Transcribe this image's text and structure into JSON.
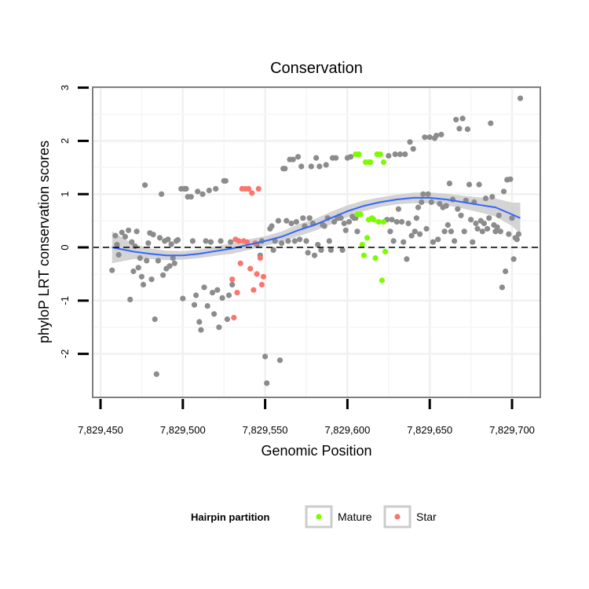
{
  "chart_data": {
    "type": "scatter",
    "title": "Conservation",
    "xlabel": "Genomic Position",
    "ylabel": "phyloP LRT conservation scores",
    "xlim": [
      7829443,
      7829707
    ],
    "ylim": [
      -2.8,
      3.0
    ],
    "x_ticks": [
      7829450,
      7829500,
      7829550,
      7829600,
      7829650,
      7829700
    ],
    "x_tick_labels": [
      "7,829,450",
      "7,829,500",
      "7,829,550",
      "7,829,600",
      "7,829,650",
      "7,829,700"
    ],
    "y_ticks": [
      -2,
      -1,
      0,
      1,
      2,
      3
    ],
    "y_tick_labels": [
      "-2",
      "-1",
      "0",
      "1",
      "2",
      "3"
    ],
    "grid": true,
    "reference_line": {
      "y": 0,
      "style": "dashed",
      "color": "#000000"
    },
    "legend": {
      "title": "Hairpin partition",
      "position": "bottom",
      "entries": [
        {
          "label": "Mature",
          "color": "#7CFC00"
        },
        {
          "label": "Star",
          "color": "#F8766D"
        }
      ]
    },
    "colors": {
      "other": "#8c8c8c",
      "Mature": "#7CFC00",
      "Star": "#F8766D",
      "smooth": "#3366FF",
      "ribbon": "#cccccc"
    },
    "series": [
      {
        "name": "Other",
        "color": "#8c8c8c",
        "points": [
          [
            7829457,
            -0.43
          ],
          [
            7829459,
            0.22
          ],
          [
            7829460,
            0.05
          ],
          [
            7829461,
            -0.14
          ],
          [
            7829463,
            0.28
          ],
          [
            7829465,
            0.2
          ],
          [
            7829467,
            0.32
          ],
          [
            7829468,
            -0.98
          ],
          [
            7829469,
            0.1
          ],
          [
            7829470,
            -0.45
          ],
          [
            7829471,
            0.02
          ],
          [
            7829472,
            0.3
          ],
          [
            7829473,
            -0.38
          ],
          [
            7829474,
            -0.2
          ],
          [
            7829475,
            -0.55
          ],
          [
            7829476,
            -0.7
          ],
          [
            7829477,
            1.17
          ],
          [
            7829478,
            -0.25
          ],
          [
            7829479,
            0.08
          ],
          [
            7829480,
            0.27
          ],
          [
            7829481,
            -0.6
          ],
          [
            7829482,
            0.24
          ],
          [
            7829483,
            -1.35
          ],
          [
            7829484,
            -2.38
          ],
          [
            7829485,
            -0.25
          ],
          [
            7829486,
            0.18
          ],
          [
            7829487,
            1.0
          ],
          [
            7829488,
            -0.52
          ],
          [
            7829489,
            0.12
          ],
          [
            7829490,
            -0.4
          ],
          [
            7829491,
            0.15
          ],
          [
            7829492,
            -0.35
          ],
          [
            7829493,
            0.06
          ],
          [
            7829494,
            -0.2
          ],
          [
            7829495,
            -0.3
          ],
          [
            7829496,
            0.12
          ],
          [
            7829497,
            0.14
          ],
          [
            7829499,
            1.1
          ],
          [
            7829500,
            -0.96
          ],
          [
            7829501,
            1.1
          ],
          [
            7829502,
            1.1
          ],
          [
            7829503,
            0.95
          ],
          [
            7829505,
            0.95
          ],
          [
            7829506,
            0.12
          ],
          [
            7829507,
            -1.08
          ],
          [
            7829508,
            -0.9
          ],
          [
            7829509,
            1.05
          ],
          [
            7829510,
            -1.4
          ],
          [
            7829511,
            -1.55
          ],
          [
            7829512,
            1.0
          ],
          [
            7829513,
            -0.75
          ],
          [
            7829514,
            0.12
          ],
          [
            7829515,
            -1.1
          ],
          [
            7829516,
            1.07
          ],
          [
            7829517,
            0.1
          ],
          [
            7829518,
            -0.85
          ],
          [
            7829519,
            -1.25
          ],
          [
            7829520,
            1.1
          ],
          [
            7829521,
            -0.8
          ],
          [
            7829522,
            -1.5
          ],
          [
            7829523,
            0.12
          ],
          [
            7829524,
            -0.95
          ],
          [
            7829525,
            1.25
          ],
          [
            7829526,
            1.25
          ],
          [
            7829527,
            -1.35
          ],
          [
            7829528,
            -0.9
          ],
          [
            7829529,
            0.1
          ],
          [
            7829530,
            -0.7
          ],
          [
            7829545,
            0.05
          ],
          [
            7829547,
            -0.15
          ],
          [
            7829548,
            0.12
          ],
          [
            7829550,
            -2.05
          ],
          [
            7829551,
            -2.55
          ],
          [
            7829553,
            0.35
          ],
          [
            7829554,
            0.4
          ],
          [
            7829555,
            -0.05
          ],
          [
            7829556,
            0.12
          ],
          [
            7829558,
            0.5
          ],
          [
            7829559,
            -2.12
          ],
          [
            7829560,
            0.08
          ],
          [
            7829561,
            1.48
          ],
          [
            7829562,
            1.48
          ],
          [
            7829563,
            0.5
          ],
          [
            7829564,
            0.12
          ],
          [
            7829565,
            1.65
          ],
          [
            7829566,
            0.45
          ],
          [
            7829567,
            1.65
          ],
          [
            7829568,
            0.12
          ],
          [
            7829569,
            0.48
          ],
          [
            7829570,
            1.7
          ],
          [
            7829571,
            0.15
          ],
          [
            7829572,
            1.52
          ],
          [
            7829573,
            0.55
          ],
          [
            7829574,
            0.4
          ],
          [
            7829575,
            0.12
          ],
          [
            7829576,
            -0.1
          ],
          [
            7829577,
            0.55
          ],
          [
            7829578,
            1.52
          ],
          [
            7829579,
            0.45
          ],
          [
            7829580,
            -0.15
          ],
          [
            7829581,
            1.68
          ],
          [
            7829582,
            0.05
          ],
          [
            7829583,
            1.52
          ],
          [
            7829584,
            -0.05
          ],
          [
            7829585,
            0.42
          ],
          [
            7829586,
            0.4
          ],
          [
            7829587,
            1.55
          ],
          [
            7829588,
            0.55
          ],
          [
            7829589,
            0.12
          ],
          [
            7829590,
            -0.05
          ],
          [
            7829591,
            1.68
          ],
          [
            7829592,
            0.48
          ],
          [
            7829593,
            1.68
          ],
          [
            7829594,
            0.55
          ],
          [
            7829595,
            0.58
          ],
          [
            7829596,
            0.55
          ],
          [
            7829597,
            -0.05
          ],
          [
            7829598,
            0.45
          ],
          [
            7829599,
            0.32
          ],
          [
            7829600,
            1.68
          ],
          [
            7829601,
            0.48
          ],
          [
            7829602,
            1.7
          ],
          [
            7829603,
            0.58
          ],
          [
            7829604,
            0.55
          ],
          [
            7829605,
            0.55
          ],
          [
            7829606,
            0.3
          ],
          [
            7829624,
            0.52
          ],
          [
            7829625,
            1.72
          ],
          [
            7829626,
            0.3
          ],
          [
            7829627,
            0.52
          ],
          [
            7829628,
            0.12
          ],
          [
            7829629,
            1.75
          ],
          [
            7829630,
            0.48
          ],
          [
            7829631,
            0.72
          ],
          [
            7829632,
            1.75
          ],
          [
            7829633,
            0.48
          ],
          [
            7829634,
            0.1
          ],
          [
            7829635,
            1.75
          ],
          [
            7829636,
            -0.22
          ],
          [
            7829637,
            0.45
          ],
          [
            7829638,
            1.98
          ],
          [
            7829639,
            0.22
          ],
          [
            7829640,
            1.85
          ],
          [
            7829641,
            0.3
          ],
          [
            7829642,
            0.55
          ],
          [
            7829643,
            0.75
          ],
          [
            7829644,
            0.25
          ],
          [
            7829645,
            0.85
          ],
          [
            7829646,
            1.0
          ],
          [
            7829647,
            2.07
          ],
          [
            7829648,
            0.35
          ],
          [
            7829649,
            1.0
          ],
          [
            7829650,
            2.07
          ],
          [
            7829651,
            0.85
          ],
          [
            7829652,
            0.1
          ],
          [
            7829653,
            2.05
          ],
          [
            7829654,
            2.1
          ],
          [
            7829655,
            0.15
          ],
          [
            7829656,
            0.82
          ],
          [
            7829657,
            2.12
          ],
          [
            7829658,
            0.75
          ],
          [
            7829659,
            0.3
          ],
          [
            7829660,
            0.78
          ],
          [
            7829661,
            0.42
          ],
          [
            7829662,
            1.2
          ],
          [
            7829663,
            0.3
          ],
          [
            7829664,
            0.9
          ],
          [
            7829665,
            0.12
          ],
          [
            7829666,
            2.4
          ],
          [
            7829667,
            0.72
          ],
          [
            7829668,
            2.23
          ],
          [
            7829669,
            0.6
          ],
          [
            7829670,
            2.42
          ],
          [
            7829671,
            0.3
          ],
          [
            7829672,
            0.88
          ],
          [
            7829673,
            2.22
          ],
          [
            7829674,
            1.18
          ],
          [
            7829675,
            0.52
          ],
          [
            7829676,
            0.1
          ],
          [
            7829677,
            0.85
          ],
          [
            7829678,
            0.45
          ],
          [
            7829679,
            0.35
          ],
          [
            7829680,
            1.18
          ],
          [
            7829681,
            0.5
          ],
          [
            7829682,
            0.3
          ],
          [
            7829683,
            0.45
          ],
          [
            7829684,
            0.92
          ],
          [
            7829685,
            0.35
          ],
          [
            7829686,
            0.55
          ],
          [
            7829687,
            2.33
          ],
          [
            7829688,
            0.95
          ],
          [
            7829689,
            0.42
          ],
          [
            7829690,
            0.3
          ],
          [
            7829691,
            0.38
          ],
          [
            7829692,
            0.6
          ],
          [
            7829693,
            0.3
          ],
          [
            7829694,
            -0.75
          ],
          [
            7829695,
            1.05
          ],
          [
            7829696,
            -0.45
          ],
          [
            7829697,
            1.27
          ],
          [
            7829698,
            0.25
          ],
          [
            7829699,
            1.28
          ],
          [
            7829700,
            0.55
          ],
          [
            7829701,
            -0.22
          ],
          [
            7829702,
            0.18
          ],
          [
            7829703,
            0.15
          ],
          [
            7829704,
            0.25
          ],
          [
            7829705,
            2.8
          ]
        ]
      },
      {
        "name": "Mature",
        "color": "#7CFC00",
        "points": [
          [
            7829605,
            1.75
          ],
          [
            7829607,
            1.75
          ],
          [
            7829606,
            0.62
          ],
          [
            7829608,
            0.62
          ],
          [
            7829609,
            0.05
          ],
          [
            7829610,
            -0.15
          ],
          [
            7829611,
            1.6
          ],
          [
            7829612,
            0.18
          ],
          [
            7829613,
            1.6
          ],
          [
            7829613,
            0.52
          ],
          [
            7829614,
            1.6
          ],
          [
            7829615,
            0.55
          ],
          [
            7829616,
            0.52
          ],
          [
            7829617,
            -0.2
          ],
          [
            7829618,
            1.75
          ],
          [
            7829619,
            0.48
          ],
          [
            7829620,
            1.75
          ],
          [
            7829621,
            -0.62
          ],
          [
            7829622,
            1.6
          ],
          [
            7829622,
            0.48
          ],
          [
            7829623,
            -0.08
          ]
        ]
      },
      {
        "name": "Star",
        "color": "#F8766D",
        "points": [
          [
            7829530,
            -0.6
          ],
          [
            7829531,
            -1.32
          ],
          [
            7829532,
            0.15
          ],
          [
            7829533,
            -0.85
          ],
          [
            7829534,
            0.12
          ],
          [
            7829535,
            -0.3
          ],
          [
            7829536,
            1.1
          ],
          [
            7829537,
            0.12
          ],
          [
            7829538,
            1.1
          ],
          [
            7829539,
            0.1
          ],
          [
            7829540,
            1.1
          ],
          [
            7829541,
            -0.4
          ],
          [
            7829542,
            1.02
          ],
          [
            7829543,
            -0.8
          ],
          [
            7829544,
            0.08
          ],
          [
            7829545,
            -0.5
          ],
          [
            7829546,
            1.1
          ],
          [
            7829547,
            -0.2
          ],
          [
            7829548,
            -0.7
          ],
          [
            7829549,
            -0.55
          ]
        ]
      }
    ],
    "smooth": {
      "method": "loess",
      "color": "#3366FF",
      "x": [
        7829457,
        7829470,
        7829480,
        7829490,
        7829500,
        7829510,
        7829520,
        7829530,
        7829540,
        7829550,
        7829560,
        7829570,
        7829580,
        7829590,
        7829600,
        7829610,
        7829620,
        7829630,
        7829640,
        7829650,
        7829660,
        7829670,
        7829680,
        7829690,
        7829700,
        7829705
      ],
      "y": [
        0.0,
        -0.08,
        -0.12,
        -0.15,
        -0.15,
        -0.12,
        -0.07,
        -0.02,
        0.05,
        0.12,
        0.2,
        0.32,
        0.42,
        0.55,
        0.68,
        0.78,
        0.85,
        0.9,
        0.93,
        0.93,
        0.9,
        0.85,
        0.8,
        0.75,
        0.62,
        0.55
      ],
      "lower": [
        -0.3,
        -0.22,
        -0.22,
        -0.24,
        -0.23,
        -0.2,
        -0.16,
        -0.12,
        -0.05,
        0.03,
        0.1,
        0.21,
        0.31,
        0.43,
        0.57,
        0.68,
        0.76,
        0.81,
        0.83,
        0.83,
        0.79,
        0.73,
        0.66,
        0.58,
        0.4,
        0.26
      ],
      "upper": [
        0.3,
        0.06,
        -0.02,
        -0.06,
        -0.07,
        -0.04,
        0.02,
        0.08,
        0.15,
        0.21,
        0.3,
        0.43,
        0.53,
        0.67,
        0.79,
        0.88,
        0.94,
        0.99,
        1.03,
        1.03,
        1.01,
        0.97,
        0.94,
        0.92,
        0.84,
        0.84
      ]
    }
  }
}
